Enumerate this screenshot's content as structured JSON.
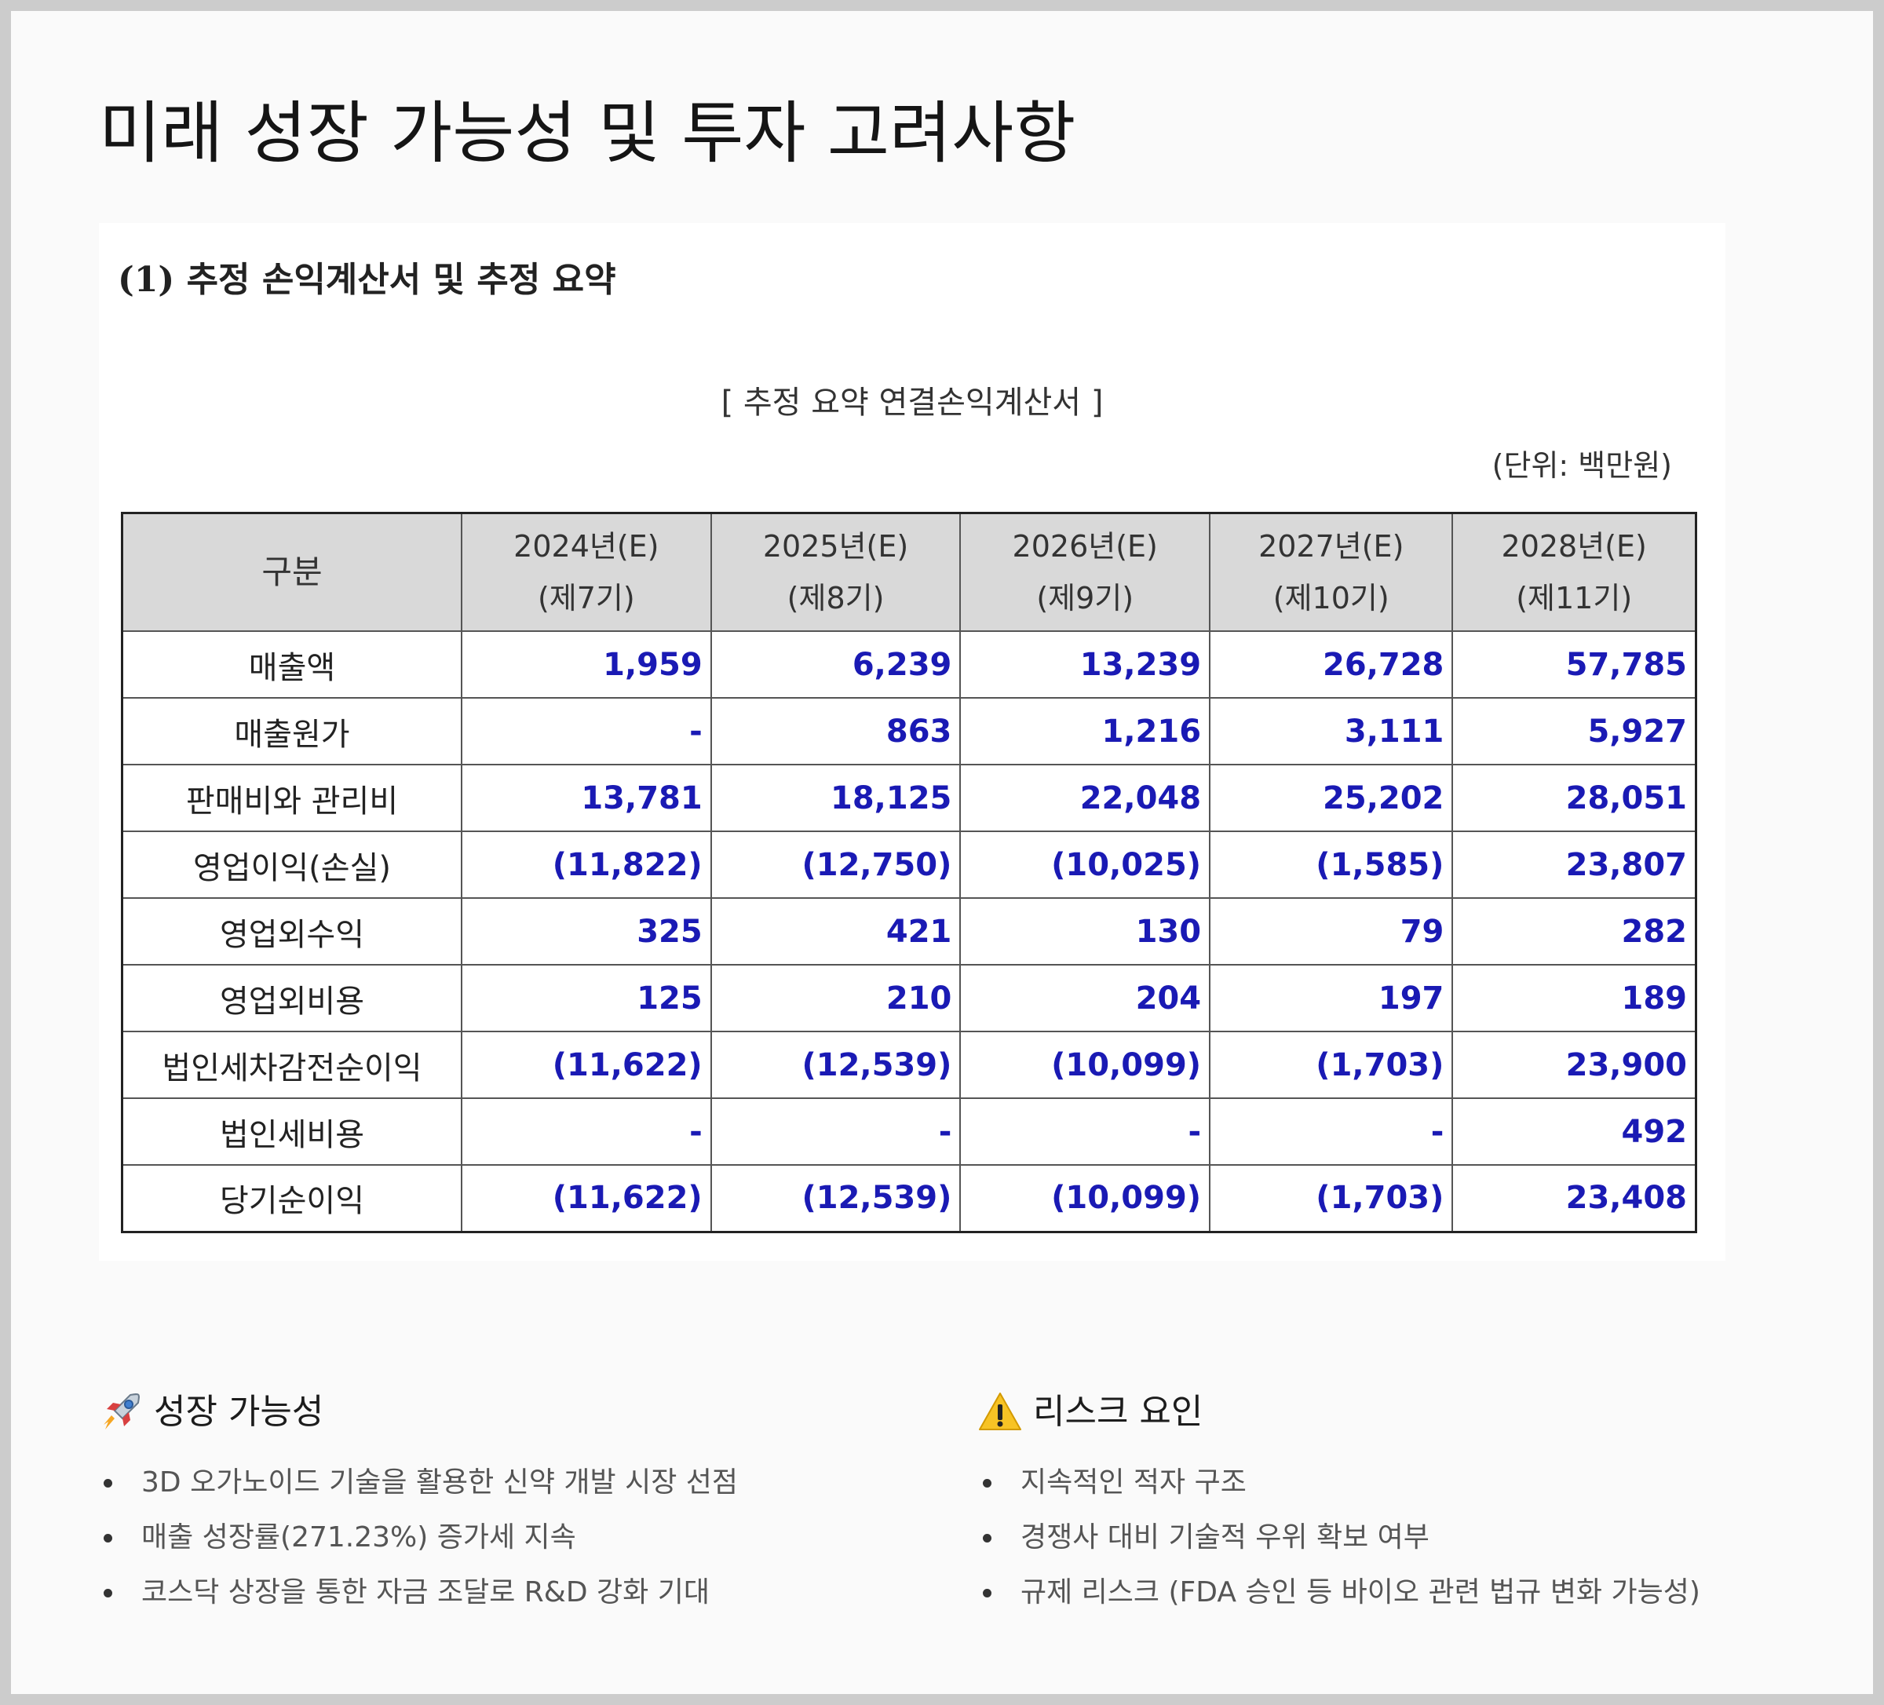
{
  "page": {
    "title": "미래 성장 가능성 및 투자 고려사항"
  },
  "document_image": {
    "heading": "(1) 추정 손익계산서 및 추정 요약",
    "subtitle": "[ 추정 요약 연결손익계산서 ]",
    "unit": "(단위: 백만원)",
    "table": {
      "corner": "구분",
      "columns": [
        {
          "year": "2024년(E)",
          "period": "(제7기)"
        },
        {
          "year": "2025년(E)",
          "period": "(제8기)"
        },
        {
          "year": "2026년(E)",
          "period": "(제9기)"
        },
        {
          "year": "2027년(E)",
          "period": "(제10기)"
        },
        {
          "year": "2028년(E)",
          "period": "(제11기)"
        }
      ],
      "rows": [
        {
          "label": "매출액",
          "values": [
            "1,959",
            "6,239",
            "13,239",
            "26,728",
            "57,785"
          ]
        },
        {
          "label": "매출원가",
          "values": [
            "-",
            "863",
            "1,216",
            "3,111",
            "5,927"
          ]
        },
        {
          "label": "판매비와 관리비",
          "values": [
            "13,781",
            "18,125",
            "22,048",
            "25,202",
            "28,051"
          ]
        },
        {
          "label": "영업이익(손실)",
          "values": [
            "(11,822)",
            "(12,750)",
            "(10,025)",
            "(1,585)",
            "23,807"
          ]
        },
        {
          "label": "영업외수익",
          "values": [
            "325",
            "421",
            "130",
            "79",
            "282"
          ]
        },
        {
          "label": "영업외비용",
          "values": [
            "125",
            "210",
            "204",
            "197",
            "189"
          ]
        },
        {
          "label": "법인세차감전순이익",
          "values": [
            "(11,622)",
            "(12,539)",
            "(10,099)",
            "(1,703)",
            "23,900"
          ]
        },
        {
          "label": "법인세비용",
          "values": [
            "-",
            "-",
            "-",
            "-",
            "492"
          ]
        },
        {
          "label": "당기순이익",
          "values": [
            "(11,622)",
            "(12,539)",
            "(10,099)",
            "(1,703)",
            "23,408"
          ]
        }
      ]
    }
  },
  "growth": {
    "icon": "rocket-icon",
    "heading": "성장 가능성",
    "items": [
      "3D 오가노이드 기술을 활용한 신약 개발 시장 선점",
      "매출 성장률(271.23%) 증가세 지속",
      "코스닥 상장을 통한 자금 조달로 R&D 강화 기대"
    ]
  },
  "risks": {
    "icon": "warning-icon",
    "heading": "리스크 요인",
    "items": [
      "지속적인 적자 구조",
      "경쟁사 대비 기술적 우위 확보 여부",
      "규제 리스크 (FDA 승인 등 바이오 관련 법규 변화 가능성)"
    ]
  },
  "colors": {
    "number_text": "#1a1ab4",
    "header_bg": "#d9d9d9",
    "page_bg": "#fafafa",
    "frame": "#cccccc"
  }
}
